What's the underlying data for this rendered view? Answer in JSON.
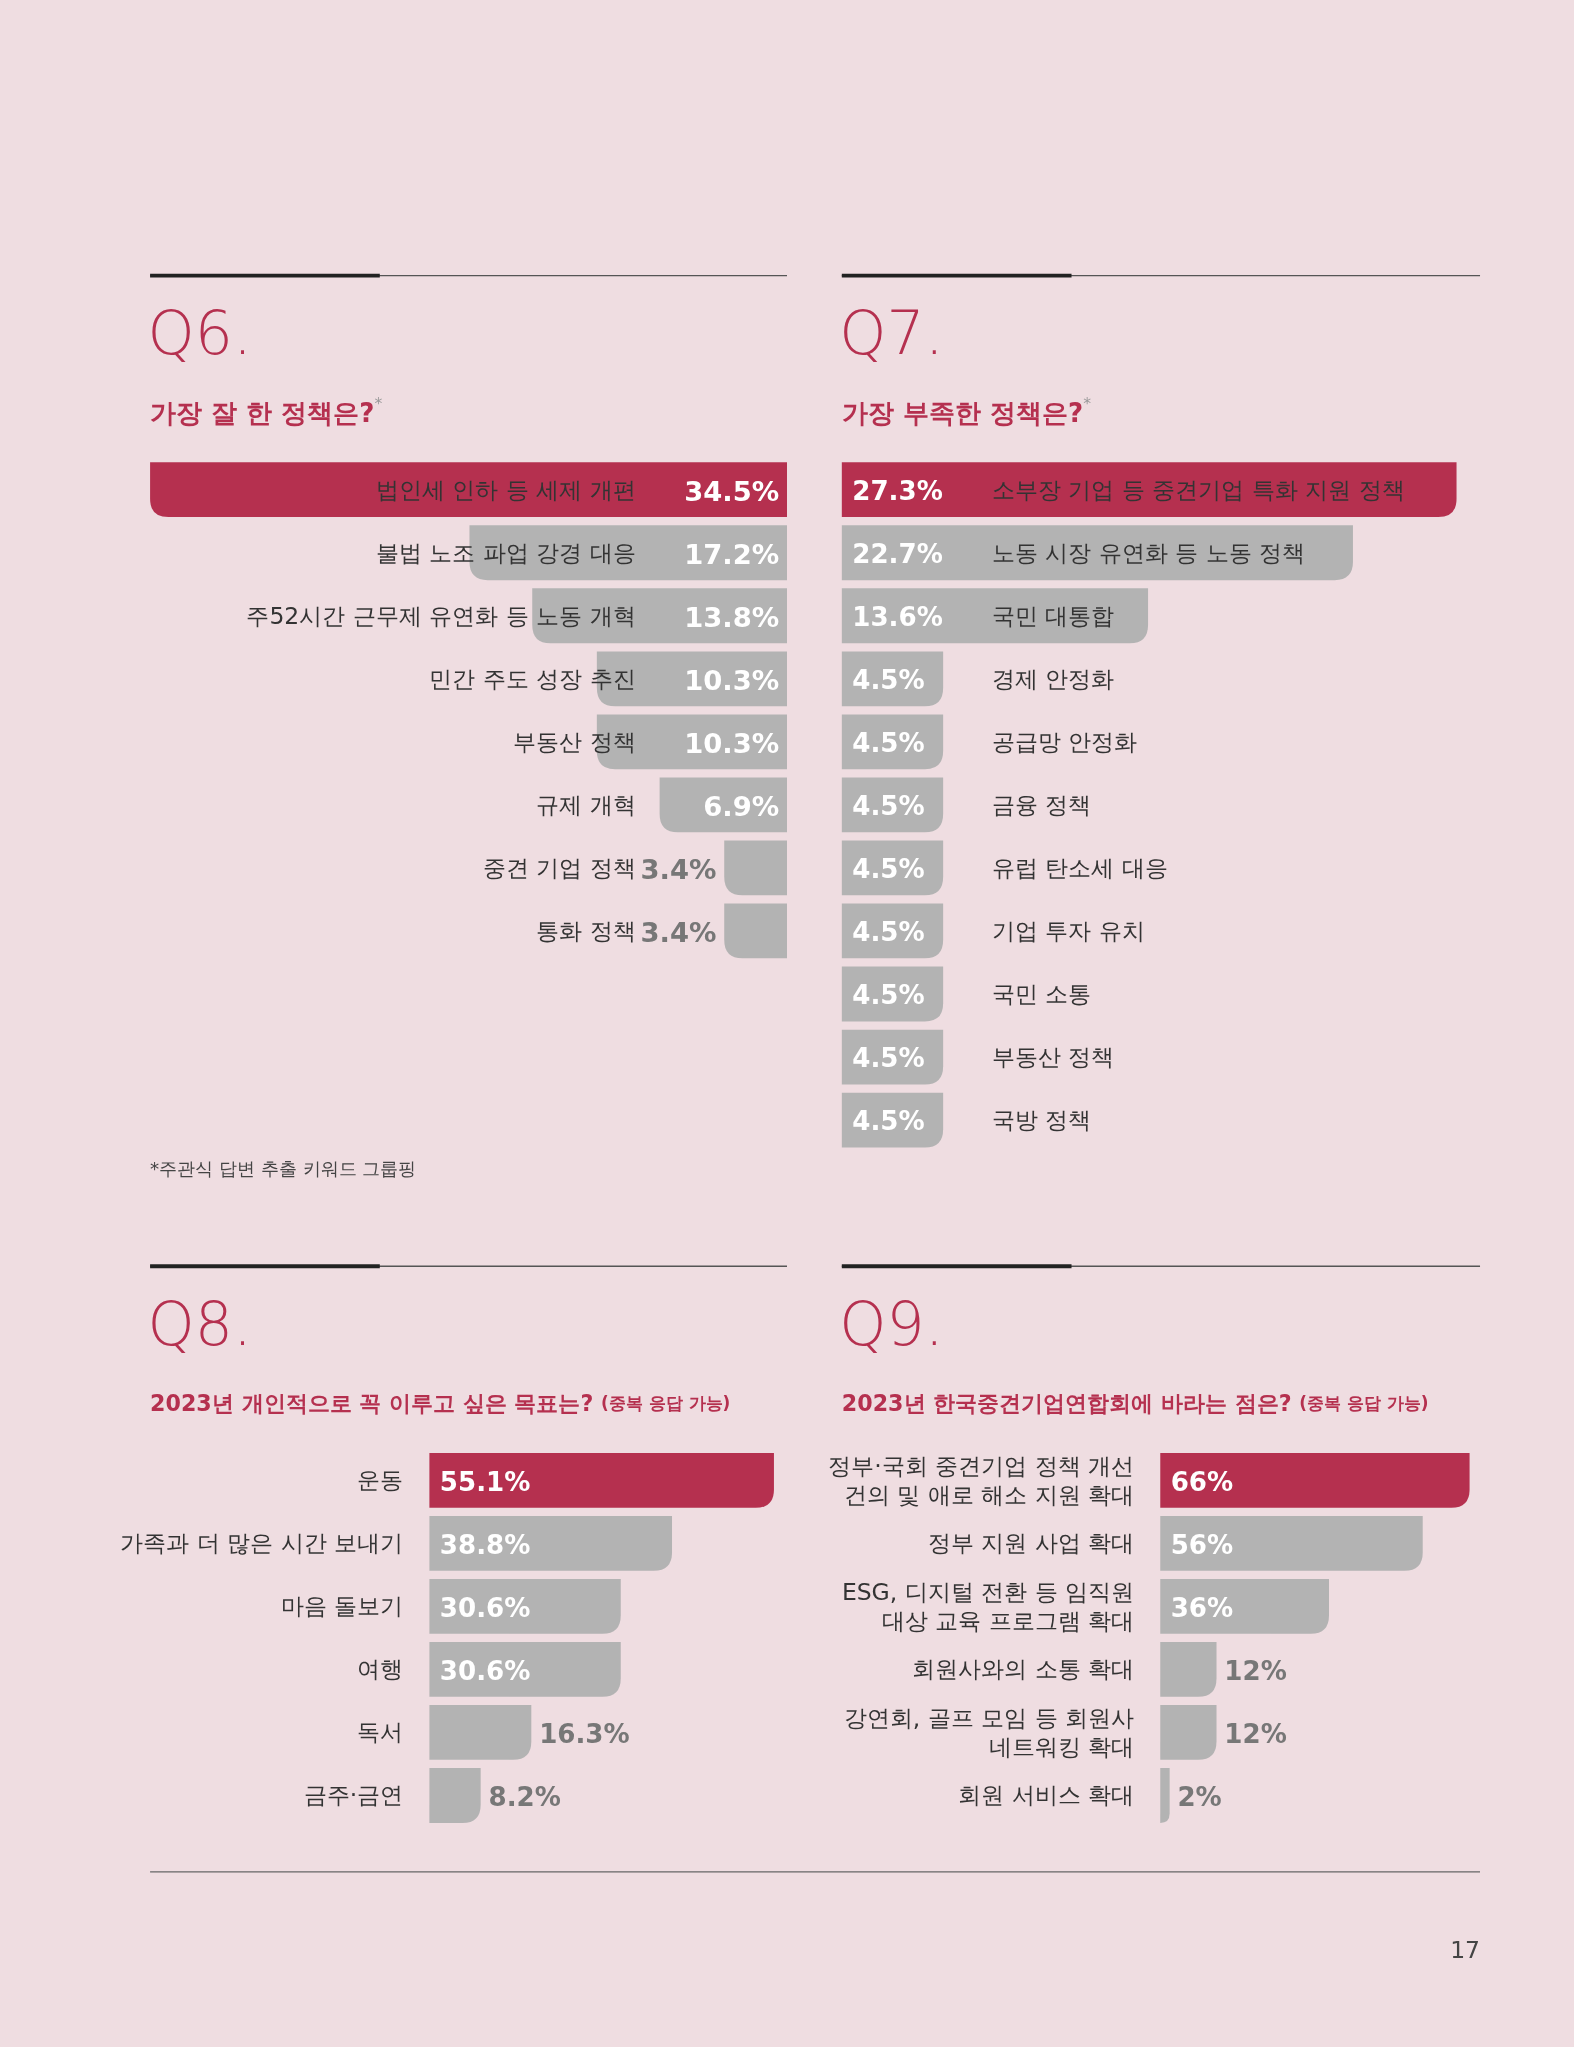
{
  "chart_data": [
    {
      "type": "bar",
      "orientation": "horizontal",
      "title": "Q6.",
      "subtitle": "가장 잘 한 정책은?$^{*}$",
      "categories": [
        "법인세 인하 등 세제 개편",
        "불법 노조 파업 강경 대응",
        "주52시간 근무제 유연화 등 노동 개혁",
        "민간 주도 성장 추진",
        "부동산 정책",
        "규제 개혁",
        "중견 기업 정책",
        "통화 정책"
      ],
      "values": [
        34.5,
        17.2,
        13.8,
        10.3,
        10.3,
        6.9,
        3.4,
        3.4
      ],
      "value_labels": [
        "34.5%",
        "17.2%",
        "13.8%",
        "10.3%",
        "10.3%",
        "6.9%",
        "3.4%",
        "3.4%"
      ],
      "colors": [
        "#b5304f",
        "#b3b3b3",
        "#b3b3b3",
        "#b3b3b3",
        "#b3b3b3",
        "#b3b3b3",
        "#b3b3b3",
        "#b3b3b3"
      ],
      "annotations": [
        "*주관식 답변 추출 키워드 그룹핑"
      ]
    },
    {
      "type": "bar",
      "orientation": "horizontal",
      "title": "Q7.",
      "subtitle": "가장 부족한 정책은?$^{*}$",
      "categories": [
        "소부장 기업 등 중견기업 특화 지원 정책",
        "노동 시장 유연화 등 노동 정책",
        "국민 대통합",
        "경제 안정화",
        "공급망 안정화",
        "금융 정책",
        "유럽 탄소세 대응",
        "기업 투자 유치",
        "국민 소통",
        "부동산 정책",
        "국방 정책"
      ],
      "values": [
        27.3,
        22.7,
        13.6,
        4.5,
        4.5,
        4.5,
        4.5,
        4.5,
        4.5,
        4.5,
        4.5
      ],
      "value_labels": [
        "27.3%",
        "22.7%",
        "13.6%",
        "4.5%",
        "4.5%",
        "4.5%",
        "4.5%",
        "4.5%",
        "4.5%",
        "4.5%",
        "4.5%"
      ],
      "colors": [
        "#b5304f",
        "#b3b3b3",
        "#b3b3b3",
        "#b3b3b3",
        "#b3b3b3",
        "#b3b3b3",
        "#b3b3b3",
        "#b3b3b3",
        "#b3b3b3",
        "#b3b3b3",
        "#b3b3b3"
      ]
    },
    {
      "type": "bar",
      "orientation": "horizontal",
      "title": "Q8.",
      "subtitle": "2023년 개인적으로 꼭 이루고 싶은 목표는? (중복 응답 가능)",
      "categories": [
        "운동",
        "가족과 더 많은 시간 보내기",
        "마음 돌보기",
        "여행",
        "독서",
        "금주·금연"
      ],
      "values": [
        55.1,
        38.8,
        30.6,
        30.6,
        16.3,
        8.2
      ],
      "value_labels": [
        "55.1%",
        "38.8%",
        "30.6%",
        "30.6%",
        "16.3%",
        "8.2%"
      ],
      "colors": [
        "#b5304f",
        "#b3b3b3",
        "#b3b3b3",
        "#b3b3b3",
        "#b3b3b3",
        "#b3b3b3"
      ]
    },
    {
      "type": "bar",
      "orientation": "horizontal",
      "title": "Q9.",
      "subtitle": "2023년 한국중견기업연합회에 바라는 점은? (중복 응답 가능)",
      "categories": [
        "정부·국회 중견기업 정책 개선 건의 및 애로 해소 지원 확대",
        "정부 지원 사업 확대",
        "ESG, 디지털 전환 등 임직원 대상 교육 프로그램 확대",
        "회원사와의 소통 확대",
        "강연회, 골프 모임 등 회원사 네트워킹 확대",
        "회원 서비스 확대"
      ],
      "values": [
        66,
        56,
        36,
        12,
        12,
        2
      ],
      "value_labels": [
        "66%",
        "56%",
        "36%",
        "12%",
        "12%",
        "2%"
      ],
      "colors": [
        "#b5304f",
        "#b3b3b3",
        "#b3b3b3",
        "#b3b3b3",
        "#b3b3b3",
        "#b3b3b3"
      ],
      "annotations": [
        "17"
      ]
    }
  ]
}
